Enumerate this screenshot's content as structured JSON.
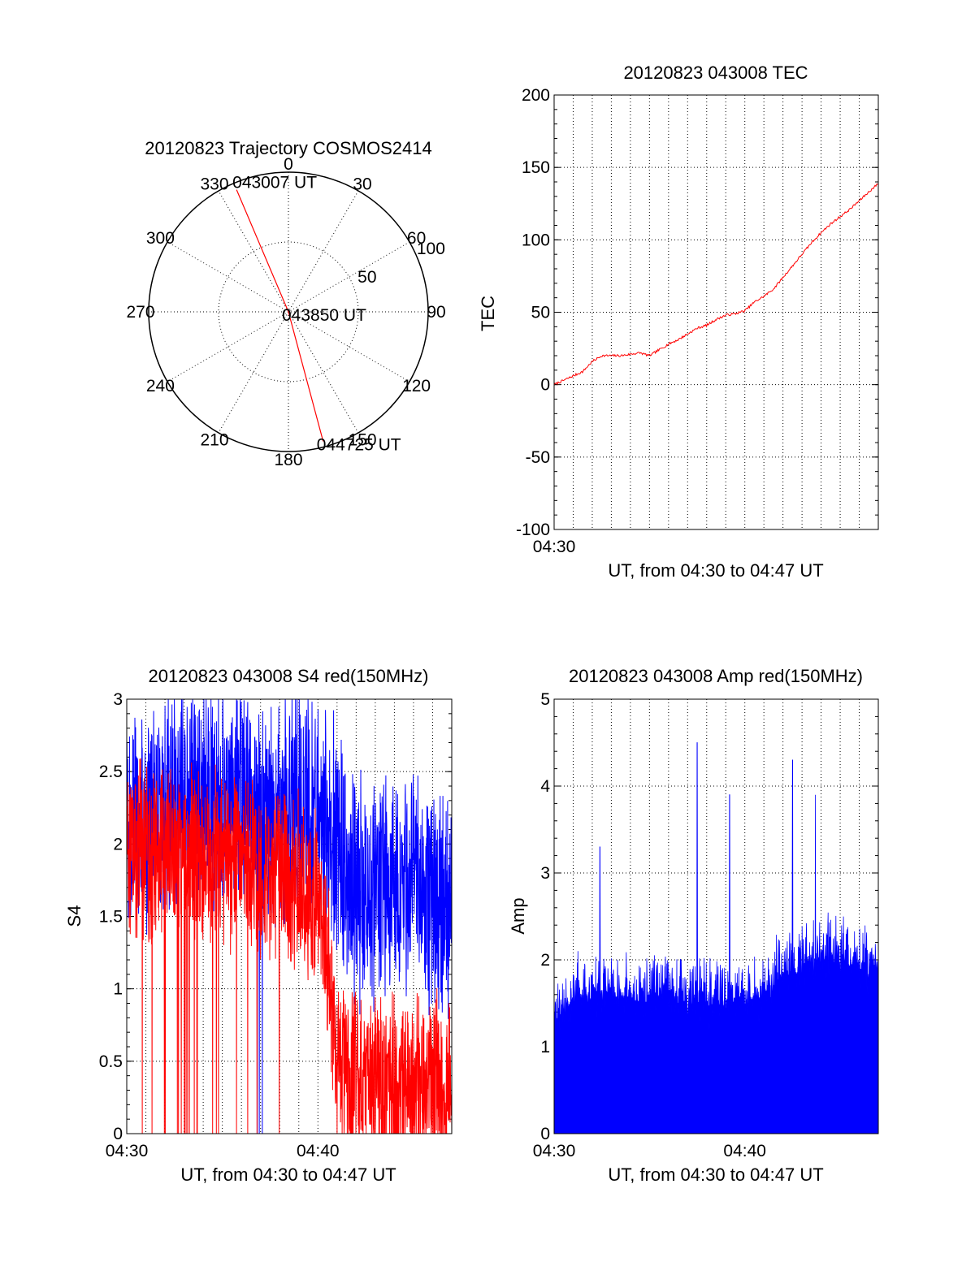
{
  "chart_data": [
    {
      "id": "trajectory",
      "type": "polar",
      "title": "20120823 Trajectory COSMOS2414",
      "azimuth_labels": [
        "0",
        "30",
        "60",
        "90",
        "120",
        "150",
        "180",
        "210",
        "240",
        "270",
        "300",
        "330"
      ],
      "radial_labels": [
        "50",
        "100"
      ],
      "radial_max": 100,
      "track_color": "#ff0000",
      "track": [
        {
          "time": "043007 UT",
          "azimuth": 337,
          "radial": 95
        },
        {
          "time": "043850 UT",
          "azimuth": 0,
          "radial": 0
        },
        {
          "time": "044725 UT",
          "azimuth": 165,
          "radial": 96
        }
      ]
    },
    {
      "id": "tec",
      "type": "line",
      "title": "20120823 043008 TEC",
      "ylabel": "TEC",
      "xlabel": "UT, from 04:30 to 04:47 UT",
      "ylim": [
        -100,
        200
      ],
      "yticks": [
        "200",
        "150",
        "100",
        "50",
        "0",
        "-50",
        "-100"
      ],
      "xlim_minutes": [
        0,
        17
      ],
      "xticks": [
        {
          "label": "04:30",
          "minute": 0
        }
      ],
      "grid": true,
      "series": [
        {
          "color": "#ff0000",
          "x_minutes": [
            0,
            0.5,
            1,
            1.5,
            2,
            2.5,
            3,
            3.5,
            4,
            4.5,
            5,
            5.5,
            6,
            6.5,
            7,
            7.5,
            8,
            8.5,
            9,
            9.5,
            10,
            10.5,
            11,
            11.5,
            12,
            12.5,
            13,
            13.5,
            14,
            14.5,
            15,
            15.5,
            16,
            16.5,
            17
          ],
          "values": [
            0,
            3,
            6,
            9,
            16,
            20,
            20,
            20,
            21,
            22,
            20,
            24,
            28,
            31,
            35,
            39,
            41,
            45,
            48,
            49,
            51,
            57,
            61,
            66,
            74,
            82,
            90,
            98,
            105,
            111,
            116,
            121,
            127,
            133,
            139
          ]
        }
      ]
    },
    {
      "id": "s4",
      "type": "line",
      "title": "20120823 043008 S4 red(150MHz)",
      "ylabel": "S4",
      "xlabel": "UT, from 04:30 to 04:47 UT",
      "ylim": [
        0,
        3
      ],
      "yticks": [
        "3",
        "2.5",
        "2",
        "1.5",
        "1",
        "0.5",
        "0"
      ],
      "xlim_minutes": [
        0,
        17
      ],
      "xticks": [
        {
          "label": "04:30",
          "minute": 0
        },
        {
          "label": "04:40",
          "minute": 10
        }
      ],
      "grid": true,
      "series": [
        {
          "color": "#0000ff",
          "x_minutes": [
            0,
            1,
            2,
            3,
            4,
            5,
            6,
            7,
            8,
            9,
            10,
            11,
            12,
            13,
            14,
            15,
            16,
            17
          ],
          "values": [
            2.1,
            2.2,
            2.3,
            2.4,
            2.3,
            2.3,
            2.4,
            2.2,
            2.2,
            2.3,
            2.2,
            2.0,
            1.7,
            1.7,
            1.8,
            1.7,
            1.6,
            1.6
          ],
          "noise": 0.45
        },
        {
          "color": "#ff0000",
          "x_minutes": [
            0,
            1,
            2,
            3,
            4,
            5,
            6,
            7,
            8,
            9,
            10,
            10.5,
            11,
            11.5,
            12,
            13,
            14,
            15,
            16,
            17
          ],
          "values": [
            2.0,
            1.9,
            2.0,
            2.0,
            1.9,
            1.9,
            1.9,
            1.8,
            1.8,
            1.7,
            1.6,
            1.2,
            0.5,
            0.4,
            0.4,
            0.35,
            0.35,
            0.35,
            0.35,
            0.33
          ],
          "noise": 0.35
        }
      ]
    },
    {
      "id": "amp",
      "type": "area",
      "title": "20120823 043008 Amp red(150MHz)",
      "ylabel": "Amp",
      "xlabel": "UT, from 04:30 to 04:47 UT",
      "ylim": [
        0,
        5
      ],
      "yticks": [
        "5",
        "4",
        "3",
        "2",
        "1",
        "0"
      ],
      "xlim_minutes": [
        0,
        17
      ],
      "xticks": [
        {
          "label": "04:30",
          "minute": 0
        },
        {
          "label": "04:40",
          "minute": 10
        }
      ],
      "grid": true,
      "series": [
        {
          "color": "#0000ff",
          "x_minutes": [
            0,
            1,
            2,
            3,
            4,
            5,
            6,
            7,
            8,
            9,
            10,
            11,
            12,
            13,
            14,
            15,
            16,
            17
          ],
          "values": [
            1.3,
            1.5,
            1.6,
            1.6,
            1.5,
            1.6,
            1.6,
            1.5,
            1.5,
            1.5,
            1.5,
            1.6,
            1.8,
            1.9,
            2.0,
            2.0,
            1.9,
            1.9
          ],
          "noise": 0.5,
          "peaks": [
            {
              "minute": 7.5,
              "value": 4.5
            },
            {
              "minute": 12.5,
              "value": 4.3
            },
            {
              "minute": 9.2,
              "value": 3.9
            },
            {
              "minute": 13.7,
              "value": 3.9
            },
            {
              "minute": 2.4,
              "value": 3.3
            }
          ]
        }
      ]
    }
  ]
}
